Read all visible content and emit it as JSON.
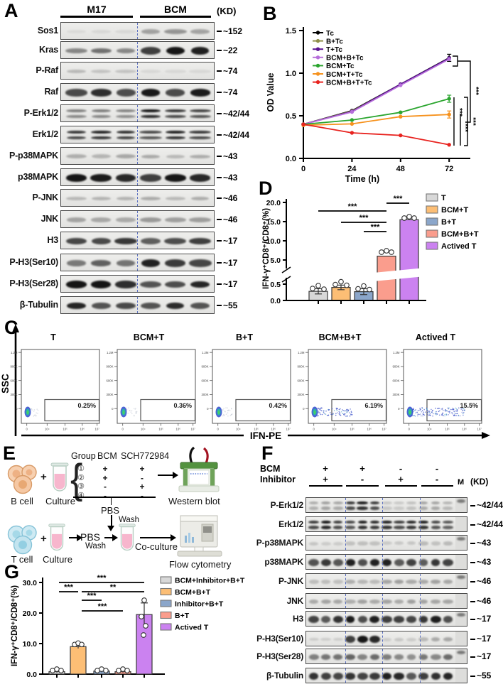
{
  "panels": {
    "A": {
      "label": "A",
      "groups": [
        "M17",
        "BCM"
      ],
      "kd": "(KD)",
      "rows": [
        {
          "protein": "Sos1",
          "size": "~152",
          "m17": 0.07,
          "bcm": 0.38
        },
        {
          "protein": "Kras",
          "size": "~22",
          "m17": 0.5,
          "bcm": 0.97
        },
        {
          "protein": "P-Raf",
          "size": "~74",
          "m17": 0.2,
          "bcm": 0.08
        },
        {
          "protein": "Raf",
          "size": "~74",
          "m17": 0.9,
          "bcm": 0.88
        },
        {
          "protein": "P-Erk1/2",
          "size": "~42/44",
          "m17": 0.55,
          "bcm": 0.97,
          "double": true
        },
        {
          "protein": "Erk1/2",
          "size": "~42/44",
          "m17": 0.88,
          "bcm": 0.85,
          "double": true
        },
        {
          "protein": "P-p38MAPK",
          "size": "~43",
          "m17": 0.3,
          "bcm": 0.26
        },
        {
          "protein": "p38MAPK",
          "size": "~43",
          "m17": 0.93,
          "bcm": 0.9
        },
        {
          "protein": "P-JNK",
          "size": "~46",
          "m17": 0.22,
          "bcm": 0.25
        },
        {
          "protein": "JNK",
          "size": "~46",
          "m17": 0.33,
          "bcm": 0.38
        },
        {
          "protein": "H3",
          "size": "~17",
          "m17": 0.85,
          "bcm": 0.78
        },
        {
          "protein": "P-H3(Ser10)",
          "size": "~17",
          "m17": 0.6,
          "bcm": 0.92
        },
        {
          "protein": "P-H3(Ser28)",
          "size": "~17",
          "m17": 0.9,
          "bcm": 0.82
        },
        {
          "protein": "β-Tubulin",
          "size": "~55",
          "m17": 0.85,
          "bcm": 0.8
        }
      ]
    },
    "B": {
      "label": "B",
      "chart": {
        "type": "line",
        "xlabel": "Time (h)",
        "ylabel": "OD Value",
        "x": [
          0,
          24,
          48,
          72
        ],
        "yticks": [
          "0.0",
          "0.5",
          "1.0",
          "1.5"
        ],
        "series": [
          {
            "name": "Tc",
            "color": "#000000",
            "values": [
              0.4,
              0.56,
              0.87,
              1.18
            ]
          },
          {
            "name": "B+Tc",
            "color": "#8f8f4a",
            "values": [
              0.4,
              0.555,
              0.865,
              1.17
            ]
          },
          {
            "name": "T+Tc",
            "color": "#5a1291",
            "values": [
              0.4,
              0.55,
              0.87,
              1.175
            ]
          },
          {
            "name": "BCM+B+Tc",
            "color": "#b76fdb",
            "values": [
              0.4,
              0.545,
              0.858,
              1.165
            ]
          },
          {
            "name": "BCM+Tc",
            "color": "#2aa52e",
            "values": [
              0.4,
              0.45,
              0.54,
              0.7
            ]
          },
          {
            "name": "BCM+T+Tc",
            "color": "#f6921e",
            "values": [
              0.39,
              0.405,
              0.49,
              0.515
            ]
          },
          {
            "name": "BCM+B+T+Tc",
            "color": "#e8231f",
            "values": [
              0.4,
              0.3,
              0.27,
              0.16
            ]
          }
        ],
        "sig_labels": [
          "***",
          "***",
          "***",
          "***"
        ]
      }
    },
    "C": {
      "label": "C",
      "ylabel": "SSC",
      "xlabel": "IFN-PE",
      "yticks": [
        "1.2M",
        "900K",
        "600K",
        "300K",
        "0"
      ],
      "xticks": [
        "0",
        "10⁴",
        "10⁵",
        "10⁶",
        "10⁷"
      ],
      "plots": [
        {
          "title": "T",
          "percent": "0.25%",
          "spread": 0.12,
          "dots": 18
        },
        {
          "title": "BCM+T",
          "percent": "0.36%",
          "spread": 0.16,
          "dots": 22
        },
        {
          "title": "B+T",
          "percent": "0.42%",
          "spread": 0.16,
          "dots": 24
        },
        {
          "title": "BCM+B+T",
          "percent": "6.19%",
          "spread": 0.5,
          "dots": 90
        },
        {
          "title": "Actived T",
          "percent": "15.5%",
          "spread": 0.75,
          "dots": 140
        }
      ]
    },
    "D": {
      "label": "D",
      "chart": {
        "type": "bar",
        "ylabel": "IFN-γ⁺CD8⁺/CD8⁺(%)",
        "upper_ticks": [
          "5.0",
          "10.0",
          "15.0",
          "20.0"
        ],
        "lower_ticks": [
          "0.0",
          "0.5"
        ],
        "categories": [
          "T",
          "BCM+T",
          "B+T",
          "BCM+B+T",
          "Actived T"
        ],
        "values": [
          0.28,
          0.4,
          0.27,
          6.0,
          15.5
        ],
        "errors": [
          0.08,
          0.07,
          0.09,
          0.25,
          0.2
        ],
        "colors": [
          "#d8d8d8",
          "#fcbe75",
          "#8ba6ca",
          "#fa9d8d",
          "#cb82f0"
        ],
        "significance": [
          {
            "from": 3,
            "to": 4,
            "label": "***"
          },
          {
            "from": 0,
            "to": 3,
            "label": "***"
          },
          {
            "from": 1,
            "to": 3,
            "label": "***"
          },
          {
            "from": 2,
            "to": 3,
            "label": "***"
          }
        ]
      }
    },
    "E": {
      "label": "E",
      "b_cell": "B cell",
      "t_cell": "T cell",
      "culture": "Culture",
      "plus": "+",
      "table": {
        "headers": [
          "Group",
          "BCM",
          "SCH772984"
        ],
        "rows": [
          [
            "①",
            "+",
            "+"
          ],
          [
            "②",
            "+",
            "-"
          ],
          [
            "③",
            "-",
            "+"
          ],
          [
            "④",
            "-",
            "-"
          ]
        ]
      },
      "western_blot": "Western blot",
      "flow_cytometry": "Flow cytometry",
      "pbs": "PBS",
      "wash": "Wash",
      "co_culture": "Co-culture"
    },
    "F": {
      "label": "F",
      "bcm_label": "BCM",
      "inhibitor_label": "Inhibitor",
      "bcm_signs": [
        "+",
        "+",
        "-",
        "-"
      ],
      "inhibitor_signs": [
        "+",
        "-",
        "+",
        "-"
      ],
      "marker": "M",
      "kd": "(KD)",
      "rows": [
        {
          "protein": "P-Erk1/2",
          "size": "~42/44",
          "groups": [
            0.32,
            0.96,
            0.18,
            0.3
          ],
          "double": true
        },
        {
          "protein": "Erk1/2",
          "size": "~42/44",
          "groups": [
            0.9,
            0.92,
            0.9,
            0.88
          ],
          "double": true
        },
        {
          "protein": "P-p38MAPK",
          "size": "~43",
          "groups": [
            0.15,
            0.2,
            0.16,
            0.22
          ]
        },
        {
          "protein": "p38MAPK",
          "size": "~43",
          "groups": [
            0.85,
            0.85,
            0.85,
            0.85
          ]
        },
        {
          "protein": "P-JNK",
          "size": "~46",
          "groups": [
            0.22,
            0.26,
            0.3,
            0.35
          ]
        },
        {
          "protein": "JNK",
          "size": "~46",
          "groups": [
            0.3,
            0.3,
            0.32,
            0.36
          ]
        },
        {
          "protein": "H3",
          "size": "~17",
          "groups": [
            0.85,
            0.88,
            0.8,
            0.9
          ]
        },
        {
          "protein": "P-H3(Ser10)",
          "size": "~17",
          "groups": [
            0.12,
            0.9,
            0.14,
            0.28
          ]
        },
        {
          "protein": "P-H3(Ser28)",
          "size": "~17",
          "groups": [
            0.5,
            0.55,
            0.5,
            0.55
          ]
        },
        {
          "protein": "β-Tubulin",
          "size": "~55",
          "groups": [
            0.88,
            0.88,
            0.86,
            0.85
          ]
        }
      ]
    },
    "G": {
      "label": "G",
      "chart": {
        "type": "bar",
        "ylabel": "IFN-γ⁺CD8⁺/CD8⁺(%)",
        "yticks": [
          "0.0",
          "10.0",
          "20.0",
          "30.0"
        ],
        "categories": [
          "BCM+Inhibitor+B+T",
          "BCM+B+T",
          "Inhibitor+B+T",
          "B+T",
          "Actived T"
        ],
        "values": [
          0.8,
          9.0,
          1.0,
          0.8,
          19.5
        ],
        "errors": [
          0.3,
          0.6,
          0.4,
          0.3,
          3.8
        ],
        "colors": [
          "#d8d8d8",
          "#fcbe75",
          "#8ba6ca",
          "#fa9d8d",
          "#cb82f0"
        ],
        "significance": [
          {
            "from": 0,
            "to": 4,
            "label": "***"
          },
          {
            "from": 0,
            "to": 1,
            "label": "***"
          },
          {
            "from": 1,
            "to": 4,
            "label": "**"
          },
          {
            "from": 1,
            "to": 2,
            "label": "***"
          },
          {
            "from": 1,
            "to": 3,
            "label": "***"
          }
        ]
      }
    }
  }
}
